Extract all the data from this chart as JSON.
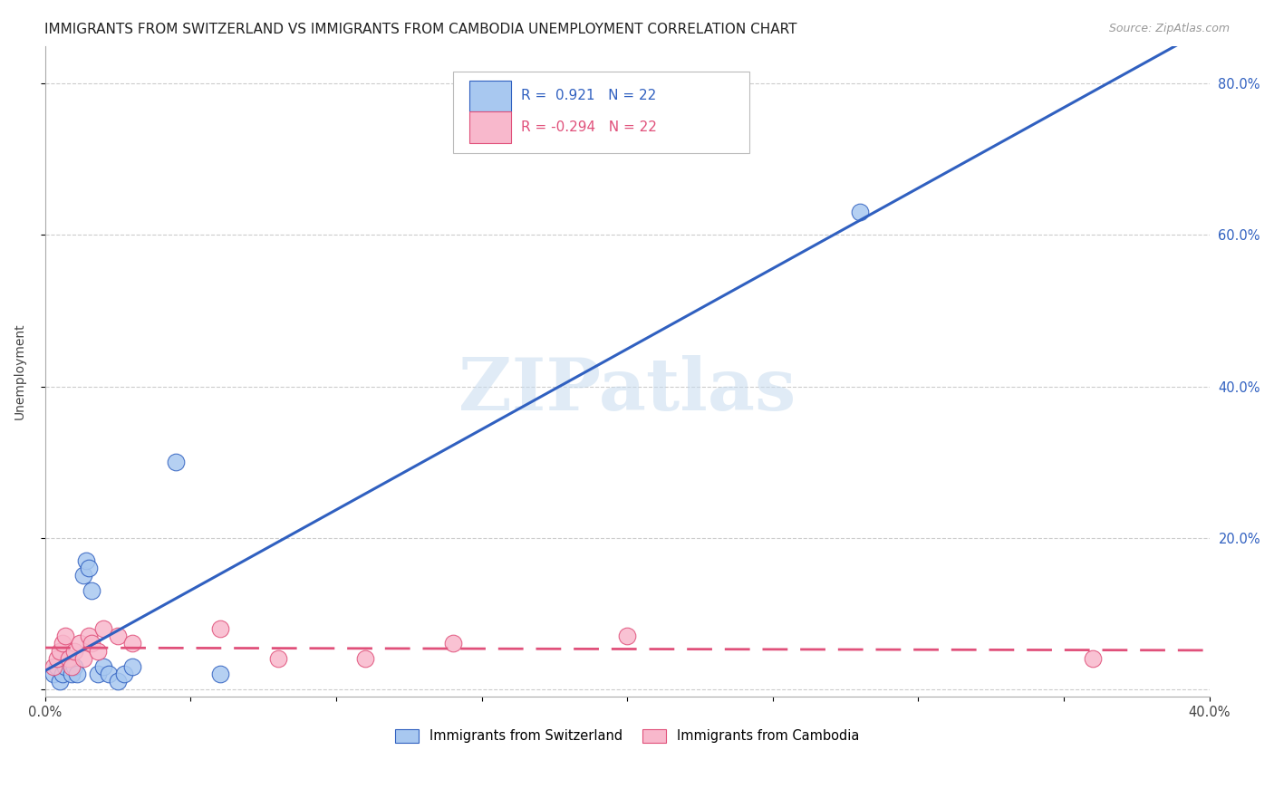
{
  "title": "IMMIGRANTS FROM SWITZERLAND VS IMMIGRANTS FROM CAMBODIA UNEMPLOYMENT CORRELATION CHART",
  "source": "Source: ZipAtlas.com",
  "ylabel": "Unemployment",
  "xlim": [
    0.0,
    0.4
  ],
  "ylim": [
    -0.01,
    0.85
  ],
  "xtick_positions": [
    0.0,
    0.05,
    0.1,
    0.15,
    0.2,
    0.25,
    0.3,
    0.35,
    0.4
  ],
  "xtick_labels": [
    "0.0%",
    "",
    "",
    "",
    "",
    "",
    "",
    "",
    "40.0%"
  ],
  "ytick_positions": [
    0.0,
    0.2,
    0.4,
    0.6,
    0.8
  ],
  "ytick_labels_right": [
    "",
    "20.0%",
    "40.0%",
    "60.0%",
    "80.0%"
  ],
  "swiss_color": "#A8C8F0",
  "cambodia_color": "#F8B8CC",
  "swiss_line_color": "#3060C0",
  "cambodia_line_color": "#E0507A",
  "swiss_R": "0.921",
  "swiss_N": "22",
  "cambodia_R": "-0.294",
  "cambodia_N": "22",
  "legend_label_swiss": "Immigrants from Switzerland",
  "legend_label_cambodia": "Immigrants from Cambodia",
  "watermark": "ZIPatlas",
  "swiss_x": [
    0.003,
    0.004,
    0.005,
    0.006,
    0.007,
    0.008,
    0.009,
    0.01,
    0.011,
    0.013,
    0.014,
    0.015,
    0.016,
    0.018,
    0.02,
    0.022,
    0.025,
    0.027,
    0.03,
    0.045,
    0.06,
    0.28
  ],
  "swiss_y": [
    0.02,
    0.03,
    0.01,
    0.02,
    0.03,
    0.04,
    0.02,
    0.03,
    0.02,
    0.15,
    0.17,
    0.16,
    0.13,
    0.02,
    0.03,
    0.02,
    0.01,
    0.02,
    0.03,
    0.3,
    0.02,
    0.63
  ],
  "cambodia_x": [
    0.003,
    0.004,
    0.005,
    0.006,
    0.007,
    0.008,
    0.009,
    0.01,
    0.012,
    0.013,
    0.015,
    0.016,
    0.018,
    0.02,
    0.025,
    0.03,
    0.06,
    0.08,
    0.11,
    0.14,
    0.2,
    0.36
  ],
  "cambodia_y": [
    0.03,
    0.04,
    0.05,
    0.06,
    0.07,
    0.04,
    0.03,
    0.05,
    0.06,
    0.04,
    0.07,
    0.06,
    0.05,
    0.08,
    0.07,
    0.06,
    0.08,
    0.04,
    0.04,
    0.06,
    0.07,
    0.04
  ],
  "bg_color": "#FFFFFF",
  "grid_color": "#CCCCCC",
  "title_fontsize": 11,
  "axis_fontsize": 10,
  "tick_fontsize": 10.5
}
